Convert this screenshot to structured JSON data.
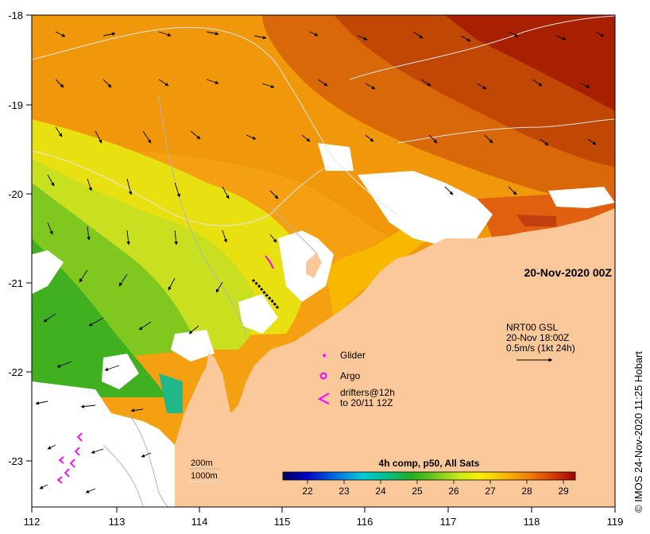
{
  "map": {
    "date_label": "20-Nov-2020 00Z",
    "x_ticks": [
      "112",
      "113",
      "114",
      "115",
      "116",
      "117",
      "118",
      "119"
    ],
    "y_ticks": [
      "-18",
      "-19",
      "-20",
      "-21",
      "-22",
      "-23"
    ],
    "lon_range": [
      112,
      119
    ],
    "lat_range": [
      -23.5,
      -18
    ],
    "credit": "© IMOS 24-Nov-2020 11:25 Hobart"
  },
  "current_legend": {
    "line1": "NRT00 GSL",
    "line2": "20-Nov 18:00Z",
    "line3": "0.5m/s (1kt 24h)"
  },
  "symbols": {
    "glider": "Glider",
    "argo": "Argo",
    "drifters_line1": "drifters@12h",
    "drifters_line2": "to 20/11 12Z"
  },
  "isobaths": {
    "line1": "200m",
    "line2": "1000m"
  },
  "colorbar": {
    "title": "4h comp, p50, All Sats",
    "ticks": [
      "22",
      "23",
      "24",
      "25",
      "26",
      "27",
      "28",
      "29"
    ],
    "range": [
      21.5,
      29.5
    ]
  },
  "colors": {
    "land": "#fbc999",
    "no_data": "#ffffff",
    "marker": "#ff00ff"
  }
}
